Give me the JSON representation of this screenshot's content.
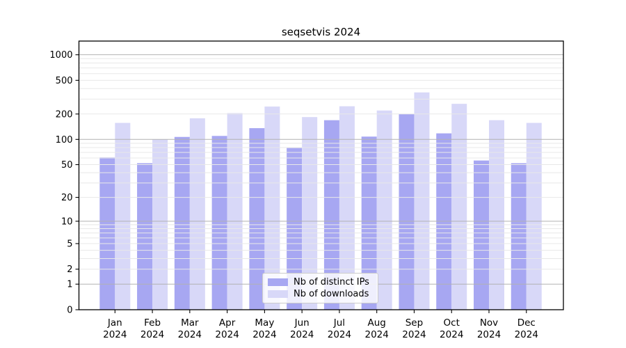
{
  "chart_data": {
    "type": "bar",
    "title": "seqsetvis 2024",
    "categories": [
      "Jan",
      "Feb",
      "Mar",
      "Apr",
      "May",
      "Jun",
      "Jul",
      "Aug",
      "Sep",
      "Oct",
      "Nov",
      "Dec"
    ],
    "year": "2024",
    "series": [
      {
        "name": "Nb of distinct IPs",
        "color": "#a7a7f2",
        "values": [
          61,
          52,
          107,
          110,
          136,
          79,
          169,
          108,
          200,
          118,
          56,
          52
        ]
      },
      {
        "name": "Nb of downloads",
        "color": "#d8d8f8",
        "values": [
          157,
          100,
          178,
          205,
          245,
          184,
          247,
          220,
          360,
          264,
          169,
          157
        ]
      }
    ],
    "yticks": [
      0,
      1,
      2,
      5,
      10,
      20,
      50,
      100,
      200,
      500,
      1000
    ],
    "yscale": "log1p",
    "ylim": [
      0,
      1450
    ],
    "grid": {
      "major_color": "#b2b2b2",
      "minor_color": "#e8e8e8",
      "major_at": [
        1,
        10,
        100,
        1000
      ]
    },
    "legend_position": "lower center",
    "axis_color": "#000000"
  }
}
